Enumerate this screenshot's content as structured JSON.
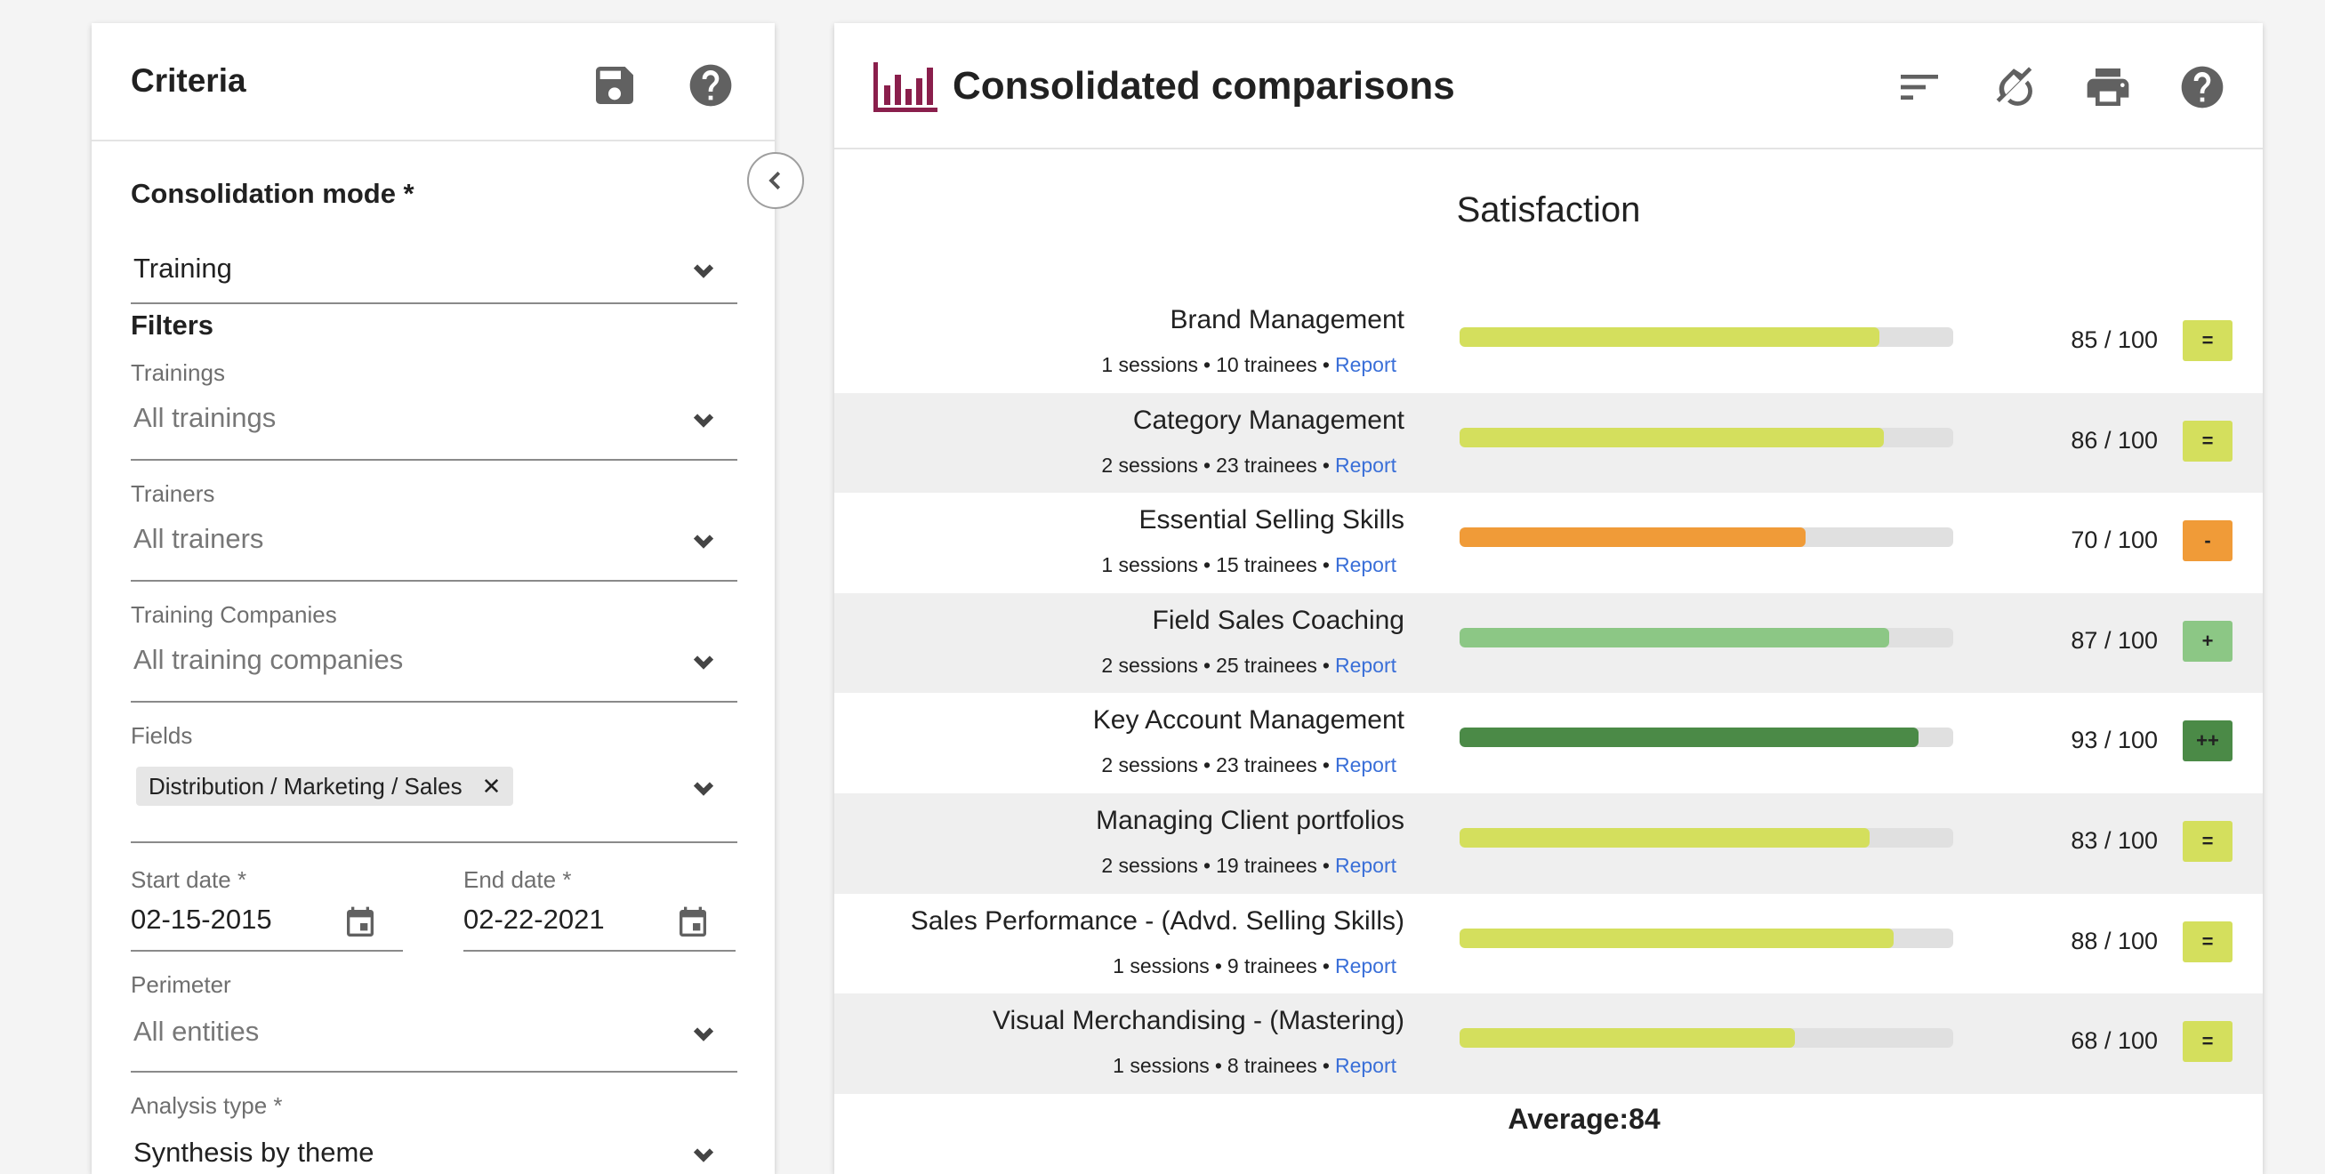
{
  "criteria": {
    "title": "Criteria",
    "consolidation_mode": {
      "label": "Consolidation mode *",
      "value": "Training"
    },
    "filters_title": "Filters",
    "trainings": {
      "label": "Trainings",
      "value": "All trainings"
    },
    "trainers": {
      "label": "Trainers",
      "value": "All trainers"
    },
    "training_companies": {
      "label": "Training Companies",
      "value": "All training companies"
    },
    "fields": {
      "label": "Fields",
      "chip": "Distribution / Marketing / Sales"
    },
    "start_date": {
      "label": "Start date *",
      "value": "02-15-2015"
    },
    "end_date": {
      "label": "End date *",
      "value": "02-22-2021"
    },
    "perimeter": {
      "label": "Perimeter",
      "value": "All entities"
    },
    "analysis_type": {
      "label": "Analysis type *",
      "value": "Synthesis by theme"
    }
  },
  "comparisons": {
    "title": "Consolidated comparisons",
    "section_title": "Satisfaction",
    "average_text": "Average:84",
    "colors": {
      "lime": "#d4df5d",
      "orange": "#f09b38",
      "light_green": "#8cc785",
      "dark_green": "#4b8a47",
      "logo": "#8a1f4c"
    },
    "rows": [
      {
        "name": "Brand Management",
        "sessions": "1 sessions",
        "trainees": "10 trainees",
        "report": "Report",
        "score": 85,
        "score_text": "85 / 100",
        "badge": "=",
        "color": "#d4df5d"
      },
      {
        "name": "Category Management",
        "sessions": "2 sessions",
        "trainees": "23 trainees",
        "report": "Report",
        "score": 86,
        "score_text": "86 / 100",
        "badge": "=",
        "color": "#d4df5d"
      },
      {
        "name": "Essential Selling Skills",
        "sessions": "1 sessions",
        "trainees": "15 trainees",
        "report": "Report",
        "score": 70,
        "score_text": "70 / 100",
        "badge": "-",
        "color": "#f09b38"
      },
      {
        "name": "Field Sales Coaching",
        "sessions": "2 sessions",
        "trainees": "25 trainees",
        "report": "Report",
        "score": 87,
        "score_text": "87 / 100",
        "badge": "+",
        "color": "#8cc785"
      },
      {
        "name": "Key Account Management",
        "sessions": "2 sessions",
        "trainees": "23 trainees",
        "report": "Report",
        "score": 93,
        "score_text": "93 / 100",
        "badge": "++",
        "color": "#4b8a47"
      },
      {
        "name": "Managing Client portfolios",
        "sessions": "2 sessions",
        "trainees": "19 trainees",
        "report": "Report",
        "score": 83,
        "score_text": "83 / 100",
        "badge": "=",
        "color": "#d4df5d"
      },
      {
        "name": "Sales Performance - (Advd. Selling Skills)",
        "sessions": "1 sessions",
        "trainees": "9 trainees",
        "report": "Report",
        "score": 88,
        "score_text": "88 / 100",
        "badge": "=",
        "color": "#d4df5d"
      },
      {
        "name": "Visual Merchandising - (Mastering)",
        "sessions": "1 sessions",
        "trainees": "8 trainees",
        "report": "Report",
        "score": 68,
        "score_text": "68 / 100",
        "badge": "=",
        "color": "#d4df5d"
      }
    ]
  },
  "icons": {
    "save": "save-icon",
    "help": "help-icon",
    "collapse": "chevron-left-icon",
    "dropdown": "chevron-down-icon",
    "calendar": "calendar-icon",
    "chart_logo": "bar-chart-icon",
    "sort": "sort-icon",
    "no_color": "invert-colors-off-icon",
    "print": "print-icon"
  }
}
